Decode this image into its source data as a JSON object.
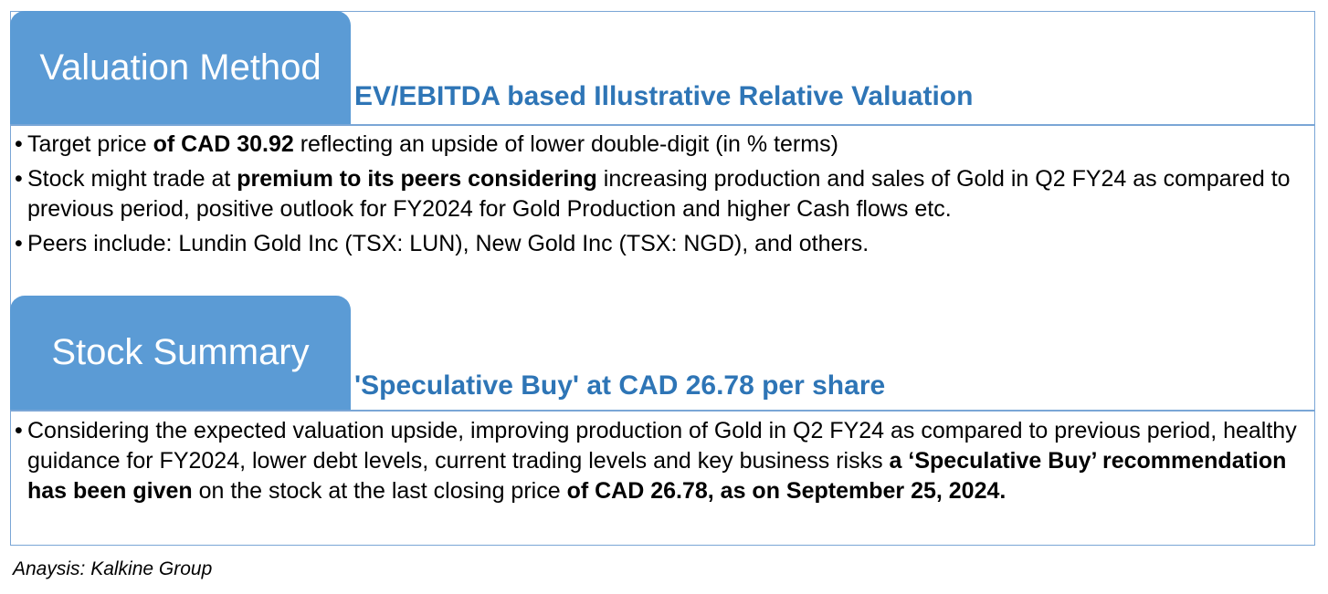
{
  "valuation": {
    "tab_title": "Valuation Method",
    "subtitle": "EV/EBITDA based Illustrative Relative Valuation",
    "bullets": [
      {
        "parts": [
          {
            "text": "Target price ",
            "bold": false
          },
          {
            "text": "of CAD 30.92",
            "bold": true
          },
          {
            "text": " reflecting an upside of lower double-digit (in % terms)",
            "bold": false
          }
        ]
      },
      {
        "parts": [
          {
            "text": "Stock might trade at ",
            "bold": false
          },
          {
            "text": "premium to its peers considering",
            "bold": true
          },
          {
            "text": " increasing production and sales of Gold in Q2 FY24 as compared to previous period, positive outlook for FY2024 for Gold Production and higher Cash flows etc.",
            "bold": false
          }
        ]
      },
      {
        "parts": [
          {
            "text": "Peers include:  Lundin Gold Inc (TSX: LUN), New Gold Inc (TSX: NGD), and others.",
            "bold": false
          }
        ]
      }
    ]
  },
  "summary": {
    "tab_title": "Stock Summary",
    "subtitle": "'Speculative Buy' at CAD 26.78 per share",
    "bullets": [
      {
        "parts": [
          {
            "text": "Considering the expected valuation upside, improving production of Gold in Q2 FY24 as compared to previous period, healthy guidance for FY2024, lower debt levels, current trading levels and key business risks ",
            "bold": false
          },
          {
            "text": "a ‘Speculative Buy’ recommendation has been given",
            "bold": true
          },
          {
            "text": " on the stock at the last closing price ",
            "bold": false
          },
          {
            "text": "of CAD 26.78, as on September 25, 2024.",
            "bold": true
          }
        ]
      }
    ]
  },
  "source": "Anaysis: Kalkine Group",
  "bullet_char": "•"
}
